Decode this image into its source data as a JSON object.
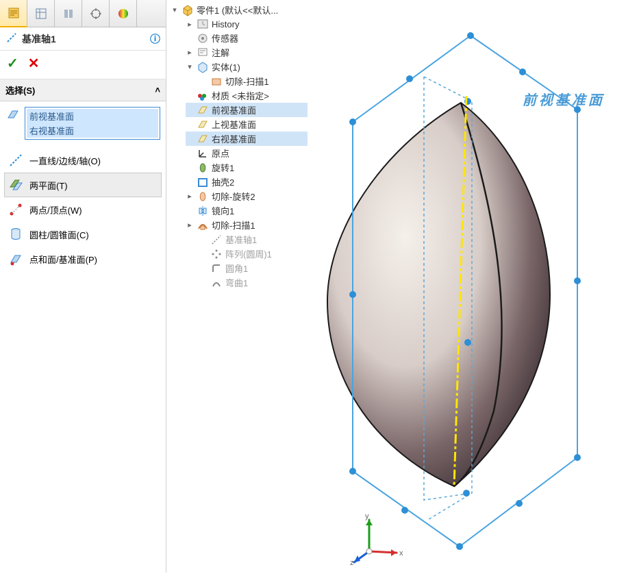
{
  "feature": {
    "title": "基准轴1",
    "ok_glyph": "✓",
    "cancel_glyph": "✕"
  },
  "section": {
    "title": "选择(S)",
    "chevron": "˄"
  },
  "selection_items": [
    "前视基准面",
    "右视基准面"
  ],
  "options": [
    {
      "label": "一直线/边线/轴(O)",
      "selected": false,
      "icon": "line"
    },
    {
      "label": "两平面(T)",
      "selected": true,
      "icon": "planes"
    },
    {
      "label": "两点/顶点(W)",
      "selected": false,
      "icon": "points"
    },
    {
      "label": "圆柱/圆锥面(C)",
      "selected": false,
      "icon": "cylinder"
    },
    {
      "label": "点和面/基准面(P)",
      "selected": false,
      "icon": "pointplane"
    }
  ],
  "tree": {
    "root": "零件1  (默认<<默认...",
    "items": [
      {
        "label": "History",
        "icon": "history",
        "exp": "▸",
        "indent": 1
      },
      {
        "label": "传感器",
        "icon": "sensor",
        "exp": "",
        "indent": 1
      },
      {
        "label": "注解",
        "icon": "annotation",
        "exp": "▸",
        "indent": 1
      },
      {
        "label": "实体(1)",
        "icon": "solid",
        "exp": "▾",
        "indent": 1
      },
      {
        "label": "切除-扫描1",
        "icon": "cut",
        "exp": "",
        "indent": 2
      },
      {
        "label": "材质 <未指定>",
        "icon": "material",
        "exp": "",
        "indent": 1
      },
      {
        "label": "前视基准面",
        "icon": "plane",
        "exp": "",
        "indent": 1,
        "sel": true
      },
      {
        "label": "上视基准面",
        "icon": "plane",
        "exp": "",
        "indent": 1
      },
      {
        "label": "右视基准面",
        "icon": "plane",
        "exp": "",
        "indent": 1,
        "sel": true
      },
      {
        "label": "原点",
        "icon": "origin",
        "exp": "",
        "indent": 1
      },
      {
        "label": "旋转1",
        "icon": "revolve",
        "exp": "",
        "indent": 1
      },
      {
        "label": "抽壳2",
        "icon": "shell",
        "exp": "",
        "indent": 1
      },
      {
        "label": "切除-旋转2",
        "icon": "cutrev",
        "exp": "▸",
        "indent": 1
      },
      {
        "label": "镜向1",
        "icon": "mirror",
        "exp": "",
        "indent": 1
      },
      {
        "label": "切除-扫描1",
        "icon": "cutsweep",
        "exp": "▸",
        "indent": 1
      },
      {
        "label": "基准轴1",
        "icon": "axis",
        "exp": "",
        "indent": 2,
        "dim": true
      },
      {
        "label": "阵列(圆周)1",
        "icon": "pattern",
        "exp": "",
        "indent": 2,
        "dim": true
      },
      {
        "label": "圆角1",
        "icon": "fillet",
        "exp": "",
        "indent": 2,
        "dim": true
      },
      {
        "label": "弯曲1",
        "icon": "flex",
        "exp": "",
        "indent": 2,
        "dim": true
      }
    ]
  },
  "viewport": {
    "plane_label": "前视基准面",
    "colors": {
      "plane_stroke": "#4aa4e0",
      "plane_handle": "#2d8fd6",
      "axis_color": "#ffe600",
      "body_light": "#f2ece6",
      "body_dark": "#5a4a4e",
      "body_edge": "#222"
    },
    "triad": {
      "x": "x",
      "y": "y",
      "z": "z",
      "x_color": "#d62f2f",
      "y_color": "#1a9e1a",
      "z_color": "#1a5fd6"
    }
  }
}
